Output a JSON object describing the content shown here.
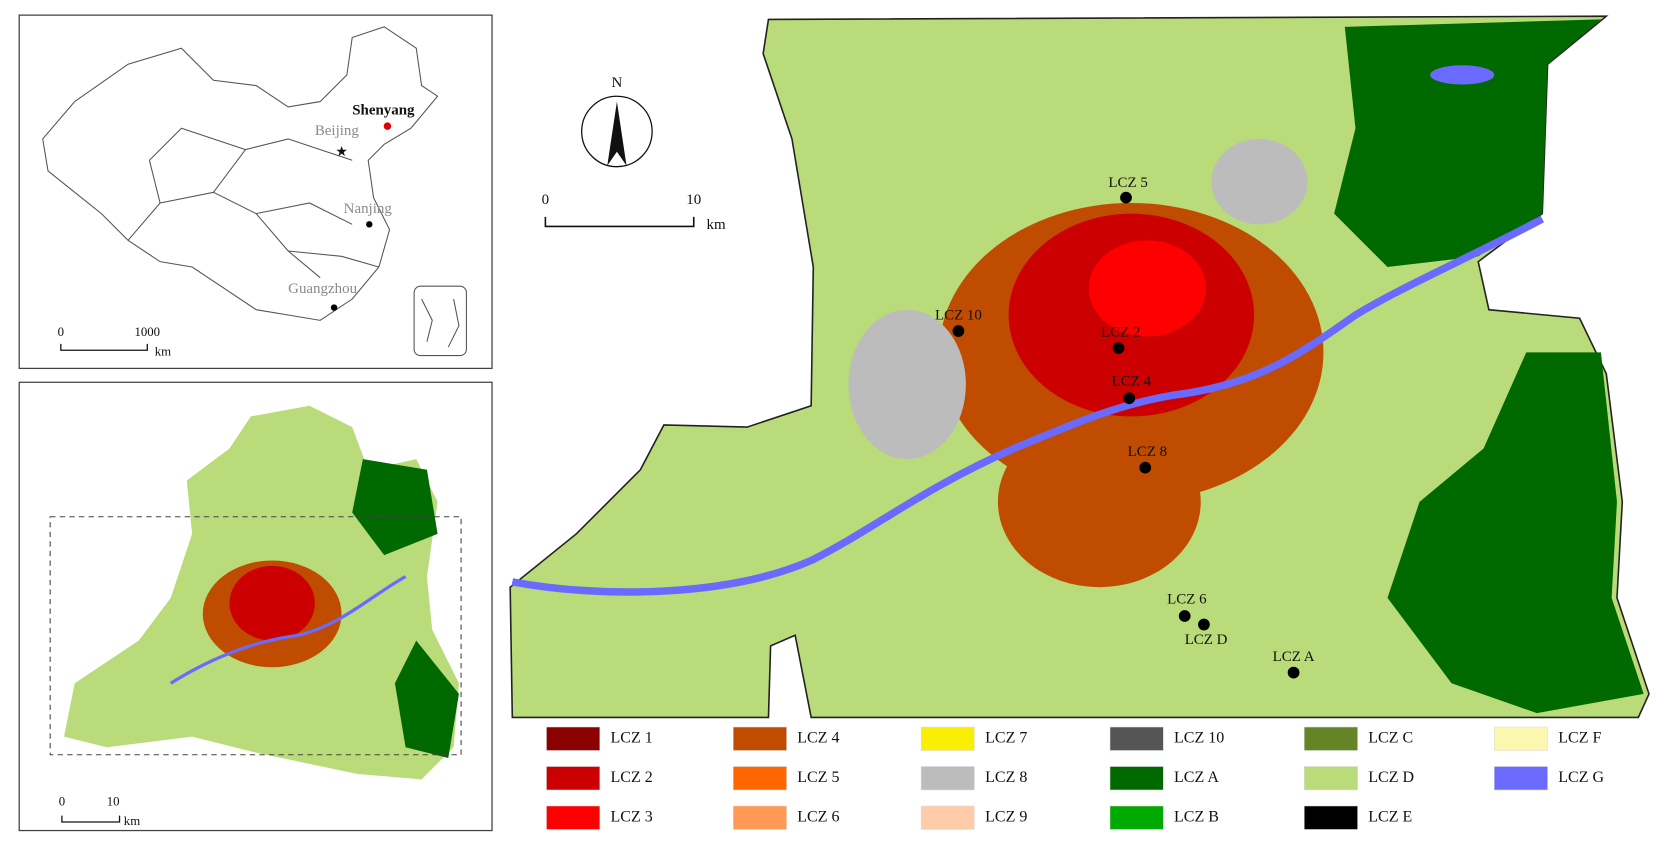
{
  "inset_china": {
    "cities": [
      "Shenyang",
      "Beijing",
      "Nanjing",
      "Guangzhou"
    ],
    "scale": {
      "ticks": [
        "0",
        "1000"
      ],
      "unit": "km"
    }
  },
  "inset_region": {
    "scale": {
      "ticks": [
        "0",
        "10"
      ],
      "unit": "km"
    }
  },
  "main_map": {
    "north": "N",
    "scale": {
      "ticks": [
        "0",
        "10"
      ],
      "unit": "km"
    },
    "sites": [
      "LCZ 5",
      "LCZ 10",
      "LCZ 2",
      "LCZ 4",
      "LCZ 8",
      "LCZ 6",
      "LCZ D",
      "LCZ A"
    ]
  },
  "legend": [
    {
      "label": "LCZ 1",
      "color": "#8b0000"
    },
    {
      "label": "LCZ 2",
      "color": "#cc0000"
    },
    {
      "label": "LCZ 3",
      "color": "#ff0000"
    },
    {
      "label": "LCZ 4",
      "color": "#bf4c00"
    },
    {
      "label": "LCZ 5",
      "color": "#ff6600"
    },
    {
      "label": "LCZ 6",
      "color": "#ff9955"
    },
    {
      "label": "LCZ 7",
      "color": "#faee05"
    },
    {
      "label": "LCZ 8",
      "color": "#bcbcbc"
    },
    {
      "label": "LCZ 9",
      "color": "#ffccaa"
    },
    {
      "label": "LCZ 10",
      "color": "#555555"
    },
    {
      "label": "LCZ A",
      "color": "#006a00"
    },
    {
      "label": "LCZ B",
      "color": "#00aa00"
    },
    {
      "label": "LCZ C",
      "color": "#648525"
    },
    {
      "label": "LCZ D",
      "color": "#b9db79"
    },
    {
      "label": "LCZ E",
      "color": "#000000"
    },
    {
      "label": "LCZ F",
      "color": "#fbf7ae"
    },
    {
      "label": "LCZ G",
      "color": "#6a6aff"
    }
  ]
}
